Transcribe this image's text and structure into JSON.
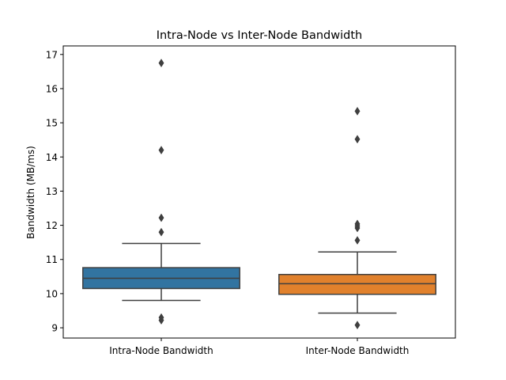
{
  "chart_data": {
    "type": "box",
    "title": "Intra-Node vs Inter-Node Bandwidth",
    "xlabel": "",
    "ylabel": "Bandwidth (MB/ms)",
    "ylim": [
      8.7,
      17.25
    ],
    "yticks": [
      9,
      10,
      11,
      12,
      13,
      14,
      15,
      16,
      17
    ],
    "grid": false,
    "categories": [
      "Intra-Node Bandwidth",
      "Inter-Node Bandwidth"
    ],
    "boxes": [
      {
        "name": "Intra-Node Bandwidth",
        "color": "#3274a1",
        "whisker_low": 9.8,
        "q1": 10.15,
        "median": 10.45,
        "q3": 10.76,
        "whisker_high": 11.47,
        "outliers": [
          9.22,
          9.3,
          11.8,
          12.22,
          14.2,
          16.75
        ]
      },
      {
        "name": "Inter-Node Bandwidth",
        "color": "#e1812c",
        "whisker_low": 9.43,
        "q1": 9.98,
        "median": 10.29,
        "q3": 10.56,
        "whisker_high": 11.22,
        "outliers": [
          9.08,
          11.56,
          11.92,
          11.98,
          12.04,
          14.52,
          15.34
        ]
      }
    ]
  }
}
